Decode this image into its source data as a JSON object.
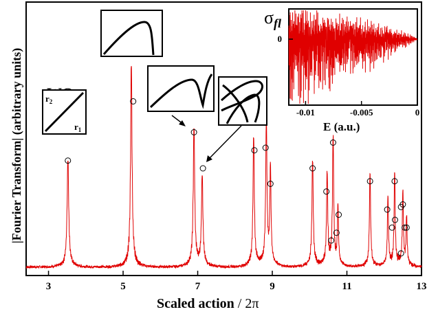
{
  "chart_data": [
    {
      "type": "line",
      "xlabel_main": "Scaled action",
      "xlabel_suffix": " / 2π",
      "ylabel": "|Fourier Transform| (arbitrary units)",
      "xlim": [
        2.4,
        13.0
      ],
      "ylim": [
        0,
        1.0
      ],
      "xticks": [
        3,
        5,
        7,
        9,
        11,
        13
      ],
      "xtick_labels": [
        "3",
        "5",
        "7",
        "9",
        "11",
        "13"
      ],
      "grid": false,
      "line_color": "#e00000",
      "peaks": [
        {
          "x": 3.52,
          "height": 0.4,
          "width": 0.025
        },
        {
          "x": 5.22,
          "height": 0.76,
          "width": 0.022
        },
        {
          "x": 6.9,
          "height": 0.52,
          "width": 0.022
        },
        {
          "x": 7.12,
          "height": 0.34,
          "width": 0.022
        },
        {
          "x": 8.5,
          "height": 0.49,
          "width": 0.02
        },
        {
          "x": 8.84,
          "height": 0.53,
          "width": 0.02
        },
        {
          "x": 8.95,
          "height": 0.36,
          "width": 0.018
        },
        {
          "x": 10.08,
          "height": 0.4,
          "width": 0.02
        },
        {
          "x": 10.47,
          "height": 0.35,
          "width": 0.018
        },
        {
          "x": 10.63,
          "height": 0.48,
          "width": 0.018
        },
        {
          "x": 10.76,
          "height": 0.22,
          "width": 0.016
        },
        {
          "x": 11.62,
          "height": 0.35,
          "width": 0.018
        },
        {
          "x": 12.1,
          "height": 0.26,
          "width": 0.016
        },
        {
          "x": 12.28,
          "height": 0.35,
          "width": 0.016
        },
        {
          "x": 12.5,
          "height": 0.28,
          "width": 0.016
        },
        {
          "x": 12.6,
          "height": 0.18,
          "width": 0.016
        }
      ],
      "circled_points": [
        {
          "x": 3.52,
          "y": 0.43
        },
        {
          "x": 5.27,
          "y": 0.66
        },
        {
          "x": 6.9,
          "y": 0.54
        },
        {
          "x": 7.14,
          "y": 0.4
        },
        {
          "x": 8.52,
          "y": 0.47
        },
        {
          "x": 8.82,
          "y": 0.48
        },
        {
          "x": 8.95,
          "y": 0.34
        },
        {
          "x": 10.08,
          "y": 0.4
        },
        {
          "x": 10.45,
          "y": 0.31
        },
        {
          "x": 10.63,
          "y": 0.5
        },
        {
          "x": 10.78,
          "y": 0.22
        },
        {
          "x": 10.58,
          "y": 0.12
        },
        {
          "x": 10.72,
          "y": 0.15
        },
        {
          "x": 11.62,
          "y": 0.35
        },
        {
          "x": 12.08,
          "y": 0.24
        },
        {
          "x": 12.21,
          "y": 0.17
        },
        {
          "x": 12.28,
          "y": 0.35
        },
        {
          "x": 12.29,
          "y": 0.2
        },
        {
          "x": 12.45,
          "y": 0.25
        },
        {
          "x": 12.5,
          "y": 0.26
        },
        {
          "x": 12.45,
          "y": 0.07
        },
        {
          "x": 12.55,
          "y": 0.17
        },
        {
          "x": 12.6,
          "y": 0.17
        }
      ]
    },
    {
      "type": "line",
      "inset": true,
      "xlabel": "E (a.u.)",
      "ylabel": "σ",
      "ylabel_subscript": "fl",
      "xlim": [
        -0.0115,
        0.0
      ],
      "xticks": [
        -0.01,
        -0.005,
        0
      ],
      "xtick_labels": [
        "-0.01",
        "-0.005",
        "0"
      ],
      "yticks": [
        0
      ],
      "ytick_labels": [
        "0"
      ],
      "line_color": "#e00000",
      "zero_line": "dashed"
    }
  ],
  "annotations": {
    "wo_label": "WO",
    "r2_label": "r",
    "r2_sub": "2",
    "r1_label": "r",
    "r1_sub": "1"
  }
}
